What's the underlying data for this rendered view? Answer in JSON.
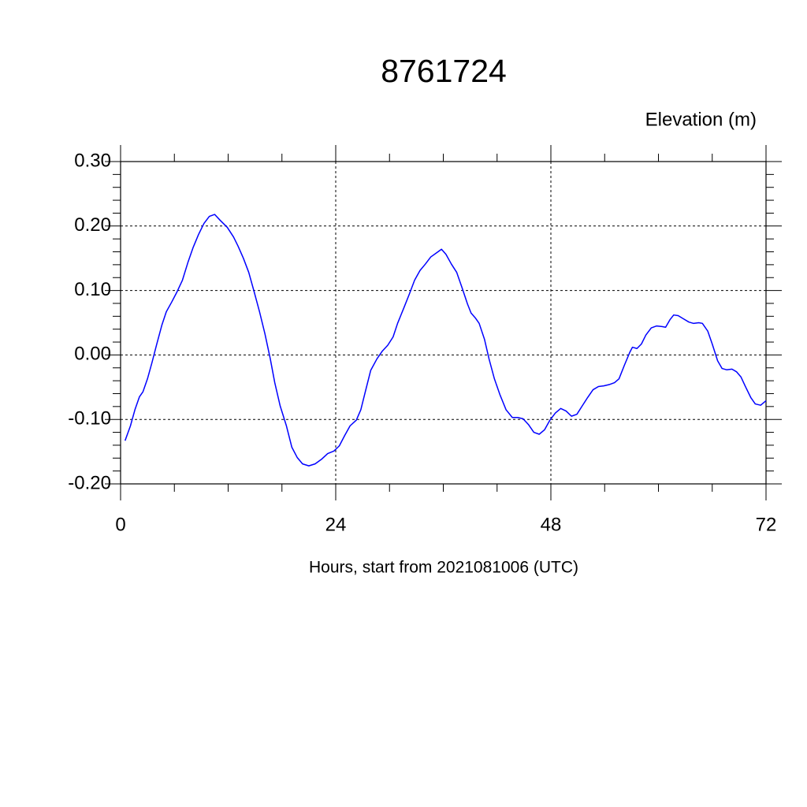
{
  "chart_data": {
    "type": "line",
    "title": "8761724",
    "y_label": "Elevation (m)",
    "x_label": "Hours, start from 2021081006 (UTC)",
    "color": "#0000ff",
    "grid": true,
    "xlim": [
      0,
      72
    ],
    "ylim": [
      -0.2,
      0.3
    ],
    "xticks": [
      0,
      24,
      48,
      72
    ],
    "yticks": [
      {
        "value": -0.2,
        "label": "-0.20"
      },
      {
        "value": -0.1,
        "label": "-0.10"
      },
      {
        "value": 0,
        "label": "0.00"
      },
      {
        "value": 0.1,
        "label": "0.10"
      },
      {
        "value": 0.2,
        "label": "0.20"
      },
      {
        "value": 0.3,
        "label": "0.30"
      }
    ],
    "xminorticks": [
      6,
      12,
      18,
      30,
      36,
      42,
      54,
      60,
      66
    ],
    "yminorticks": [
      -0.18,
      -0.16,
      -0.14,
      -0.12,
      -0.08,
      -0.06,
      -0.04,
      -0.02,
      0.02,
      0.04,
      0.06,
      0.08,
      0.12,
      0.14,
      0.16,
      0.18,
      0.22,
      0.24,
      0.26,
      0.28
    ],
    "x": [
      0.5,
      1.1,
      1.6,
      2.1,
      2.5,
      3,
      3.5,
      4,
      4.6,
      5.1,
      5.7,
      6.3,
      6.9,
      7.5,
      8.1,
      8.7,
      9.3,
      9.9,
      10.5,
      11.1,
      11.9,
      12.6,
      13.1,
      13.7,
      14.3,
      14.9,
      15.5,
      16.1,
      16.7,
      17.2,
      17.8,
      18.5,
      19.1,
      19.7,
      20.3,
      21,
      21.7,
      22.4,
      23.1,
      23.8,
      24.4,
      25,
      25.6,
      26.3,
      26.8,
      27.3,
      27.9,
      28.6,
      29.2,
      29.8,
      30.4,
      30.9,
      31.6,
      32.2,
      32.8,
      33.4,
      34,
      34.6,
      35.3,
      35.8,
      36.3,
      36.9,
      37.5,
      38.1,
      38.7,
      39.1,
      39.6,
      40,
      40.6,
      41.1,
      41.7,
      42.3,
      43,
      43.7,
      44.3,
      44.9,
      45.5,
      46.1,
      46.7,
      47.3,
      47.9,
      48.5,
      49.1,
      49.7,
      50.3,
      50.9,
      51.5,
      52.1,
      52.7,
      53.3,
      53.9,
      54.5,
      55.1,
      55.6,
      56.2,
      56.8,
      57.1,
      57.6,
      58.1,
      58.6,
      59.2,
      59.8,
      60.4,
      60.8,
      61.3,
      61.7,
      62.2,
      62.8,
      63.4,
      63.9,
      64.5,
      64.9,
      65.5,
      66,
      66.6,
      67.1,
      67.6,
      68.2,
      68.7,
      69.2,
      69.7,
      70.3,
      70.8,
      71.4,
      72
    ],
    "values": [
      -0.133,
      -0.11,
      -0.085,
      -0.065,
      -0.057,
      -0.037,
      -0.012,
      0.015,
      0.046,
      0.067,
      0.082,
      0.098,
      0.116,
      0.143,
      0.167,
      0.187,
      0.204,
      0.215,
      0.218,
      0.209,
      0.198,
      0.183,
      0.169,
      0.15,
      0.128,
      0.098,
      0.067,
      0.033,
      -0.006,
      -0.043,
      -0.079,
      -0.11,
      -0.143,
      -0.159,
      -0.169,
      -0.172,
      -0.169,
      -0.162,
      -0.153,
      -0.149,
      -0.141,
      -0.125,
      -0.11,
      -0.101,
      -0.085,
      -0.057,
      -0.024,
      -0.006,
      0.006,
      0.015,
      0.028,
      0.049,
      0.073,
      0.094,
      0.116,
      0.131,
      0.141,
      0.152,
      0.159,
      0.164,
      0.156,
      0.141,
      0.128,
      0.104,
      0.079,
      0.065,
      0.057,
      0.049,
      0.024,
      -0.006,
      -0.037,
      -0.061,
      -0.085,
      -0.097,
      -0.097,
      -0.099,
      -0.108,
      -0.12,
      -0.123,
      -0.116,
      -0.101,
      -0.09,
      -0.083,
      -0.087,
      -0.095,
      -0.092,
      -0.079,
      -0.066,
      -0.054,
      -0.049,
      -0.048,
      -0.046,
      -0.043,
      -0.037,
      -0.016,
      0.004,
      0.012,
      0.01,
      0.017,
      0.031,
      0.042,
      0.045,
      0.044,
      0.043,
      0.055,
      0.062,
      0.061,
      0.056,
      0.051,
      0.049,
      0.05,
      0.049,
      0.037,
      0.017,
      -0.009,
      -0.021,
      -0.023,
      -0.022,
      -0.026,
      -0.034,
      -0.049,
      -0.066,
      -0.076,
      -0.078,
      -0.071
    ]
  }
}
